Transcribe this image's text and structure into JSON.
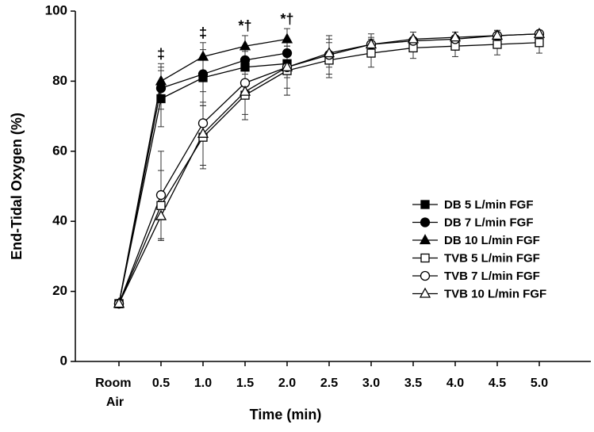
{
  "chart_data": {
    "type": "line",
    "xlabel": "Time (min)",
    "ylabel": "End-Tidal Oxygen (%)",
    "categories": [
      "Room Air",
      "0.5",
      "1.0",
      "1.5",
      "2.0",
      "2.5",
      "3.0",
      "3.5",
      "4.0",
      "4.5",
      "5.0"
    ],
    "ylim": [
      0,
      100
    ],
    "yticks": [
      0,
      20,
      40,
      60,
      80,
      100
    ],
    "legend": "lower right",
    "series": [
      {
        "name": "DB 5 L/min FGF",
        "color": "#000",
        "marker": "square",
        "fill": "#000",
        "values": [
          16.5,
          75,
          81,
          84,
          85,
          null,
          null,
          null,
          null,
          null,
          null
        ],
        "errors": [
          1,
          8,
          8,
          5,
          4,
          null,
          null,
          null,
          null,
          null,
          null
        ]
      },
      {
        "name": "DB 7 L/min FGF",
        "color": "#000",
        "marker": "circle",
        "fill": "#000",
        "values": [
          16.5,
          78,
          82,
          86,
          88,
          null,
          null,
          null,
          null,
          null,
          null
        ],
        "errors": [
          1,
          6,
          5,
          4,
          3,
          null,
          null,
          null,
          null,
          null,
          null
        ]
      },
      {
        "name": "DB 10 L/min FGF",
        "color": "#000",
        "marker": "triangle",
        "fill": "#000",
        "values": [
          16.5,
          80,
          87,
          90,
          92,
          null,
          null,
          null,
          null,
          null,
          null
        ],
        "errors": [
          1,
          5,
          4,
          3,
          3,
          null,
          null,
          null,
          null,
          null,
          null
        ]
      },
      {
        "name": "TVB 5 L/min FGF",
        "color": "#000",
        "marker": "square",
        "fill": "#fff",
        "values": [
          16.5,
          44.5,
          64,
          76,
          83,
          86,
          88,
          89.5,
          90,
          90.5,
          91
        ],
        "errors": [
          1,
          10,
          9,
          7,
          7,
          5,
          4,
          3,
          3,
          3,
          3
        ]
      },
      {
        "name": "TVB 7 L/min FGF",
        "color": "#000",
        "marker": "circle",
        "fill": "#fff",
        "values": [
          16.5,
          47.5,
          68,
          79.5,
          84,
          87.5,
          90.5,
          91.5,
          92,
          93,
          93.5
        ],
        "errors": [
          1,
          12.5,
          12,
          9,
          8,
          5.5,
          3,
          2.5,
          2,
          1.5,
          1
        ]
      },
      {
        "name": "TVB 10 L/min FGF",
        "color": "#000",
        "marker": "triangle",
        "fill": "#fff",
        "values": [
          16.5,
          41.5,
          65,
          77,
          84,
          88,
          90.5,
          92,
          92.5,
          93,
          93.5
        ],
        "errors": [
          1,
          6.5,
          9,
          8,
          6,
          4,
          2,
          2,
          1.5,
          1.5,
          1
        ]
      }
    ],
    "annotations": [
      {
        "text": "‡",
        "category": "0.5"
      },
      {
        "text": "‡",
        "category": "1.0"
      },
      {
        "text": "*†",
        "category": "1.5"
      },
      {
        "text": "*†",
        "category": "2.0"
      }
    ]
  }
}
